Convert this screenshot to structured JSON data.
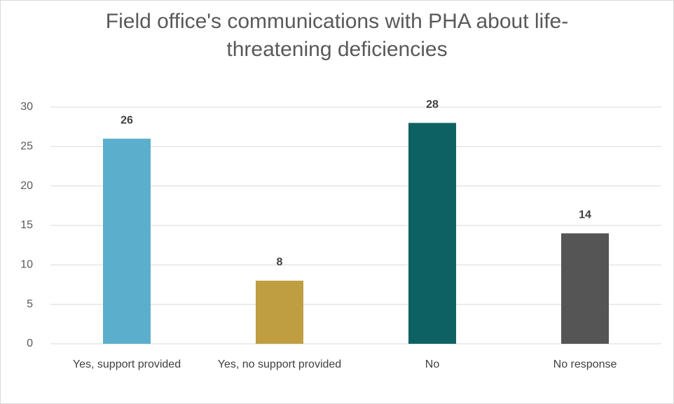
{
  "chart_data": {
    "type": "bar",
    "title": "Field office's communications with PHA about life-threatening deficiencies",
    "categories": [
      "Yes, support provided",
      "Yes, no support provided",
      "No",
      "No response"
    ],
    "values": [
      26,
      8,
      28,
      14
    ],
    "colors": [
      "#5bafcc",
      "#bf9e42",
      "#0e6163",
      "#555555"
    ],
    "ylim": [
      0,
      30
    ],
    "yticks": [
      0,
      5,
      10,
      15,
      20,
      25,
      30
    ],
    "grid": true
  }
}
